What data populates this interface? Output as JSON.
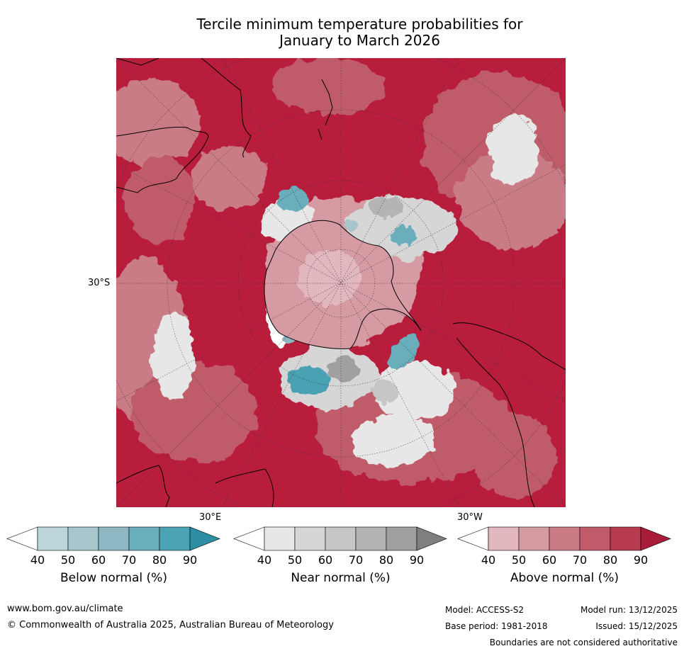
{
  "title": {
    "line1": "Tercile minimum temperature probabilities for",
    "line2": "January to March 2026"
  },
  "map": {
    "latitude_label": "30°S",
    "longitude_labels": {
      "east": "30°E",
      "west": "30°W"
    },
    "colors": {
      "above_normal_dominant": "#b81d3c",
      "near_normal_gray": "#c6c6c6",
      "below_normal_teal": "#4aa2b3",
      "coastline": "#000000"
    }
  },
  "colorbars": [
    {
      "name": "Below normal (%)",
      "ticks": [
        "40",
        "50",
        "60",
        "70",
        "80",
        "90"
      ],
      "colors": [
        "#ffffff",
        "#bcd6dc",
        "#a6c6cc",
        "#8db7c3",
        "#6aaebb",
        "#4aa2b3",
        "#2d8ea3"
      ]
    },
    {
      "name": "Near normal (%)",
      "ticks": [
        "40",
        "50",
        "60",
        "70",
        "80",
        "90"
      ],
      "colors": [
        "#ffffff",
        "#e7e7e7",
        "#d6d6d6",
        "#c6c6c6",
        "#b4b4b4",
        "#a0a0a0",
        "#7f7f7f"
      ]
    },
    {
      "name": "Above normal (%)",
      "ticks": [
        "40",
        "50",
        "60",
        "70",
        "80",
        "90"
      ],
      "colors": [
        "#ffffff",
        "#e2b7bd",
        "#d59aa2",
        "#ca7b86",
        "#c05b6a",
        "#b83a4f",
        "#a81c3a"
      ]
    }
  ],
  "footer": {
    "website": "www.bom.gov.au/climate",
    "copyright": "© Commonwealth of Australia 2025, Australian Bureau of Meteorology",
    "model": "Model: ACCESS-S2",
    "model_run": "Model run: 13/12/2025",
    "base_period": "Base period: 1981-2018",
    "issued": "Issued: 15/12/2025",
    "disclaimer": "Boundaries are not considered authoritative"
  }
}
